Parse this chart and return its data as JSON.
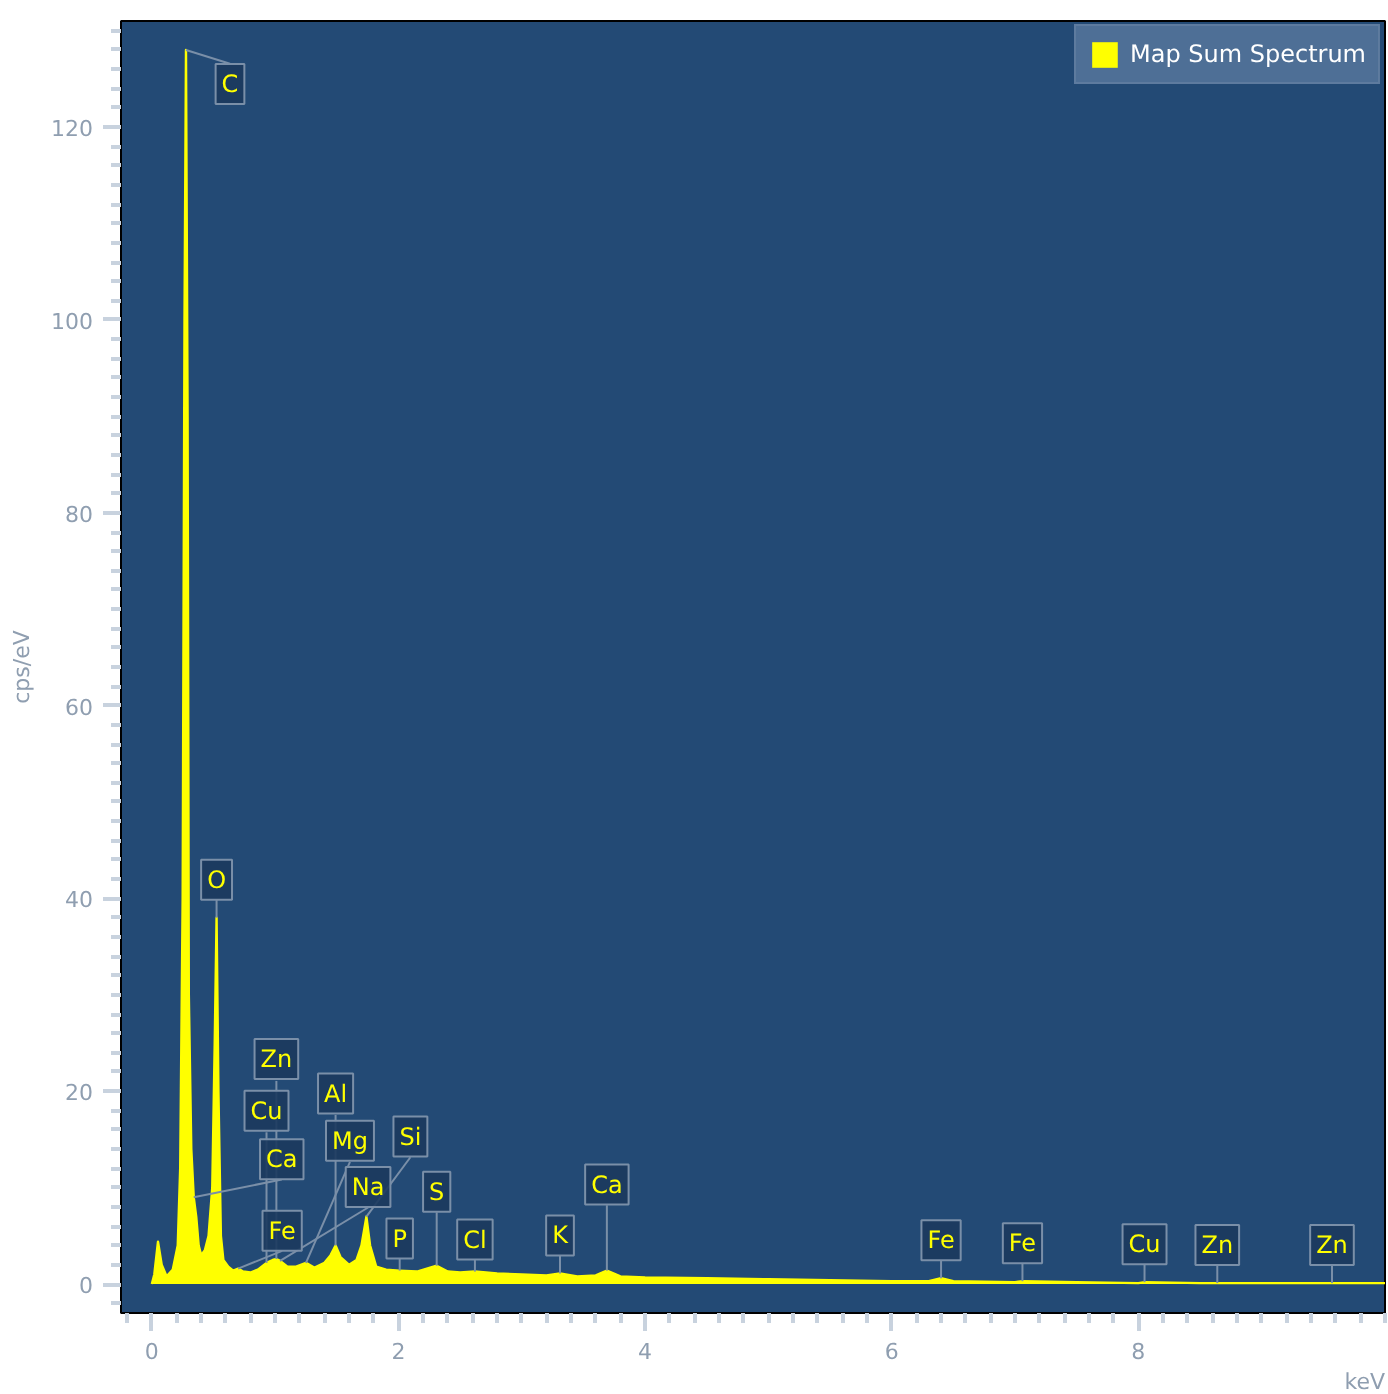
{
  "chart_data": {
    "type": "area",
    "xlabel": "keV",
    "ylabel": "cps/eV",
    "xlim": [
      -0.25,
      10
    ],
    "ylim": [
      -3,
      131
    ],
    "xticks": [
      0,
      2,
      4,
      6,
      8
    ],
    "yticks": [
      0,
      20,
      40,
      60,
      80,
      100,
      120
    ],
    "grid": false,
    "legend": "top right",
    "x": [
      0.0,
      0.02,
      0.05,
      0.08,
      0.12,
      0.17,
      0.21,
      0.23,
      0.25,
      0.265,
      0.277,
      0.29,
      0.3,
      0.32,
      0.34,
      0.36,
      0.38,
      0.4,
      0.43,
      0.46,
      0.49,
      0.51,
      0.525,
      0.54,
      0.56,
      0.58,
      0.62,
      0.66,
      0.7,
      0.74,
      0.8,
      0.86,
      0.93,
      0.98,
      1.01,
      1.04,
      1.1,
      1.17,
      1.25,
      1.32,
      1.4,
      1.45,
      1.49,
      1.53,
      1.6,
      1.66,
      1.7,
      1.74,
      1.77,
      1.82,
      1.9,
      2.01,
      2.15,
      2.31,
      2.4,
      2.5,
      2.62,
      2.8,
      3.0,
      3.2,
      3.31,
      3.45,
      3.6,
      3.69,
      3.8,
      4.0,
      4.5,
      5.0,
      5.5,
      6.0,
      6.3,
      6.4,
      6.5,
      7.0,
      7.06,
      7.5,
      8.0,
      8.05,
      8.5,
      9.0,
      10.0
    ],
    "series": [
      {
        "name": "Map Sum Spectrum",
        "color": "#ffff00",
        "values": [
          0,
          1,
          4.4,
          2,
          0.8,
          1.5,
          4,
          12,
          40,
          100,
          128,
          90,
          30,
          14,
          9,
          7,
          4,
          3,
          3.5,
          5,
          10,
          25,
          38,
          20,
          5,
          2.5,
          1.8,
          1.4,
          1.6,
          1.3,
          1.2,
          1.5,
          2.2,
          2.5,
          2.6,
          2.4,
          1.8,
          1.8,
          2.2,
          1.7,
          2.2,
          3,
          4,
          2.8,
          2,
          2.5,
          4,
          7,
          4,
          1.8,
          1.5,
          1.4,
          1.3,
          1.9,
          1.3,
          1.2,
          1.3,
          1.1,
          1,
          0.9,
          1.1,
          0.8,
          0.9,
          1.4,
          0.8,
          0.7,
          0.6,
          0.5,
          0.4,
          0.3,
          0.3,
          0.6,
          0.3,
          0.2,
          0.3,
          0.2,
          0.1,
          0.2,
          0.1,
          0.1,
          0.1
        ]
      }
    ],
    "annotations": [
      {
        "text": "C",
        "x": 0.277,
        "y": 128
      },
      {
        "text": "Ca",
        "x": 0.34,
        "y": 9
      },
      {
        "text": "O",
        "x": 0.525,
        "y": 38
      },
      {
        "text": "Fe",
        "x": 0.7,
        "y": 1.6
      },
      {
        "text": "Cu",
        "x": 0.93,
        "y": 2.2
      },
      {
        "text": "Zn",
        "x": 1.01,
        "y": 2.6
      },
      {
        "text": "Na",
        "x": 1.04,
        "y": 2.4
      },
      {
        "text": "Mg",
        "x": 1.25,
        "y": 2.2
      },
      {
        "text": "Al",
        "x": 1.49,
        "y": 4
      },
      {
        "text": "Si",
        "x": 1.74,
        "y": 7
      },
      {
        "text": "P",
        "x": 2.01,
        "y": 1.4
      },
      {
        "text": "S",
        "x": 2.31,
        "y": 1.9
      },
      {
        "text": "Cl",
        "x": 2.62,
        "y": 1.3
      },
      {
        "text": "K",
        "x": 3.31,
        "y": 1.1
      },
      {
        "text": "Ca",
        "x": 3.69,
        "y": 1.4
      },
      {
        "text": "Fe",
        "x": 6.4,
        "y": 0.6
      },
      {
        "text": "Fe",
        "x": 7.06,
        "y": 0.3
      },
      {
        "text": "Cu",
        "x": 8.05,
        "y": 0.2
      },
      {
        "text": "Zn",
        "x": 8.64,
        "y": 0.1
      },
      {
        "text": "Zn",
        "x": 9.57,
        "y": 0.1
      }
    ]
  }
}
